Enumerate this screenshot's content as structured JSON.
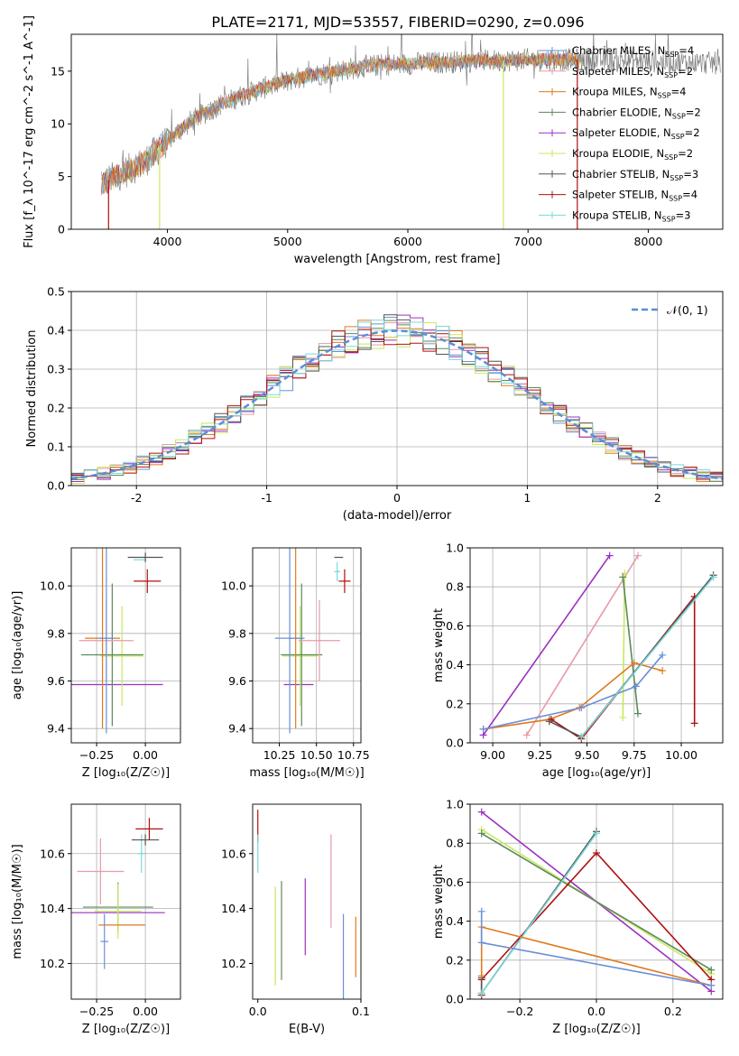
{
  "figure": {
    "title": "PLATE=2171, MJD=53557, FIBERID=0290, z=0.096"
  },
  "colors": {
    "chabrier_miles": "#6a8fd8",
    "salpeter_miles": "#e89aa8",
    "kroupa_miles": "#e07a1f",
    "chabrier_elodie": "#5a8a5a",
    "salpeter_elodie": "#9b30c0",
    "kroupa_elodie": "#c8e860",
    "chabrier_stelib": "#555555",
    "salpeter_stelib": "#b01010",
    "kroupa_stelib": "#7ad8d8",
    "gauss": "#5b8ed6",
    "grid": "#b0b0b0"
  },
  "chart_data": [
    {
      "id": "spectrum",
      "type": "line",
      "xlabel": "wavelength [Angstrom, rest frame]",
      "ylabel": "Flux [f_λ 10^-17 erg cm^-2 s^-1 A^-1]",
      "xlim": [
        3200,
        8620
      ],
      "ylim": [
        0,
        18.5
      ],
      "xticks": [
        4000,
        5000,
        6000,
        7000,
        8000
      ],
      "yticks": [
        0,
        5,
        10,
        15
      ],
      "grid": false,
      "legend_position": "upper-right",
      "legend": [
        {
          "label": "Chabrier MILES, N",
          "sub": "SSP",
          "suffix": "=4",
          "color_key": "chabrier_miles"
        },
        {
          "label": "Salpeter MILES, N",
          "sub": "SSP",
          "suffix": "=2",
          "color_key": "salpeter_miles"
        },
        {
          "label": "Kroupa MILES, N",
          "sub": "SSP",
          "suffix": "=4",
          "color_key": "kroupa_miles"
        },
        {
          "label": "Chabrier ELODIE, N",
          "sub": "SSP",
          "suffix": "=2",
          "color_key": "chabrier_elodie"
        },
        {
          "label": "Salpeter ELODIE, N",
          "sub": "SSP",
          "suffix": "=2",
          "color_key": "salpeter_elodie"
        },
        {
          "label": "Kroupa ELODIE, N",
          "sub": "SSP",
          "suffix": "=2",
          "color_key": "kroupa_elodie"
        },
        {
          "label": "Chabrier STELIB, N",
          "sub": "SSP",
          "suffix": "=3",
          "color_key": "chabrier_stelib"
        },
        {
          "label": "Salpeter STELIB, N",
          "sub": "SSP",
          "suffix": "=4",
          "color_key": "salpeter_stelib"
        },
        {
          "label": "Kroupa STELIB, N",
          "sub": "SSP",
          "suffix": "=3",
          "color_key": "kroupa_stelib"
        }
      ],
      "continuum": {
        "x": [
          3450,
          3600,
          3800,
          4000,
          4200,
          4400,
          4600,
          4800,
          5000,
          5200,
          5400,
          5600,
          5800,
          6000,
          6200,
          6400,
          6600,
          6800,
          7000,
          7200,
          7400,
          7450
        ],
        "y": [
          4.3,
          5.2,
          6.3,
          8.4,
          10.3,
          11.6,
          12.6,
          13.4,
          14.1,
          14.6,
          15.0,
          15.4,
          15.6,
          15.7,
          15.8,
          15.9,
          16.0,
          16.0,
          16.1,
          16.1,
          16.1,
          16.0
        ]
      },
      "data_range": [
        3450,
        8600
      ],
      "model_range": [
        3450,
        7450
      ],
      "spikes": [
        {
          "x": 3510,
          "y": 0,
          "color_key": "salpeter_stelib"
        },
        {
          "x": 3935,
          "y": 0,
          "color_key": "kroupa_elodie"
        },
        {
          "x": 6795,
          "y": 0,
          "color_key": "kroupa_elodie"
        },
        {
          "x": 7410,
          "y": 0,
          "color_key": "salpeter_stelib"
        },
        {
          "x": 5850,
          "y": 16.2,
          "color_key": "salpeter_miles"
        }
      ]
    },
    {
      "id": "residuals",
      "type": "step-histogram",
      "xlabel": "(data-model)/error",
      "ylabel": "Normed distribution",
      "xlim": [
        -2.5,
        2.5
      ],
      "ylim": [
        0,
        0.5
      ],
      "xticks": [
        -2,
        -1,
        0,
        1,
        2
      ],
      "yticks": [
        0.0,
        0.1,
        0.2,
        0.3,
        0.4,
        0.5
      ],
      "grid": true,
      "bin_width": 0.1,
      "legend": [
        {
          "label": "𝒩(0, 1)",
          "color_key": "gauss",
          "style": "dashed"
        }
      ],
      "legend_position": "upper-right"
    },
    {
      "id": "age_vs_Z",
      "type": "errorbar",
      "xlabel": "Z [log₁₀(Z/Z☉)]",
      "ylabel": "age  [log₁₀(age/yr)]",
      "xlim": [
        -0.38,
        0.18
      ],
      "ylim": [
        9.34,
        10.16
      ],
      "xticks": [
        -0.25,
        0.0
      ],
      "xticklabels": [
        "−0.25",
        "0.00"
      ],
      "yticks": [
        9.4,
        9.6,
        9.8,
        10.0
      ],
      "grid": true,
      "points": [
        {
          "x": -0.18,
          "xerr": 0.27,
          "y": 9.585,
          "yerr": 0.0,
          "color_key": "salpeter_elodie"
        },
        {
          "x": -0.12,
          "xerr": 0.11,
          "y": 9.705,
          "yerr": 0.21,
          "color_key": "kroupa_elodie"
        },
        {
          "x": -0.17,
          "xerr": 0.16,
          "y": 9.71,
          "yerr": 0.3,
          "color_key": "chabrier_elodie"
        },
        {
          "x": -0.2,
          "xerr": 0.14,
          "y": 9.77,
          "yerr": 0.17,
          "color_key": "salpeter_miles"
        },
        {
          "x": -0.22,
          "xerr": 0.09,
          "y": 9.78,
          "yerr": 0.38,
          "color_key": "kroupa_miles"
        },
        {
          "x": -0.2,
          "xerr": 0.04,
          "y": 9.78,
          "yerr": 0.4,
          "color_key": "chabrier_miles"
        },
        {
          "x": -0.03,
          "xerr": 0.03,
          "y": 10.11,
          "yerr": 0.0,
          "color_key": "kroupa_stelib"
        },
        {
          "x": 0.0,
          "xerr": 0.09,
          "y": 10.12,
          "yerr": 0.02,
          "color_key": "chabrier_stelib"
        },
        {
          "x": 0.01,
          "xerr": 0.07,
          "y": 10.02,
          "yerr": 0.05,
          "color_key": "salpeter_stelib"
        }
      ]
    },
    {
      "id": "age_vs_mass",
      "type": "errorbar",
      "xlabel": "mass [log₁₀(M/M☉)]",
      "ylabel": "",
      "xlim": [
        10.07,
        10.8
      ],
      "ylim": [
        9.34,
        10.16
      ],
      "xticks": [
        10.25,
        10.5,
        10.75
      ],
      "xticklabels": [
        "10.25",
        "10.50",
        "10.75"
      ],
      "yticks": [
        9.4,
        9.6,
        9.8,
        10.0
      ],
      "grid": true,
      "points": [
        {
          "x": 10.38,
          "xerr": 0.1,
          "y": 9.585,
          "yerr": 0.0,
          "color_key": "salpeter_elodie"
        },
        {
          "x": 10.39,
          "xerr": 0.12,
          "y": 9.705,
          "yerr": 0.21,
          "color_key": "kroupa_elodie"
        },
        {
          "x": 10.4,
          "xerr": 0.14,
          "y": 9.71,
          "yerr": 0.3,
          "color_key": "chabrier_elodie"
        },
        {
          "x": 10.52,
          "xerr": 0.14,
          "y": 9.77,
          "yerr": 0.17,
          "color_key": "salpeter_miles"
        },
        {
          "x": 10.36,
          "xerr": 0.05,
          "y": 9.78,
          "yerr": 0.38,
          "color_key": "kroupa_miles"
        },
        {
          "x": 10.32,
          "xerr": 0.1,
          "y": 9.78,
          "yerr": 0.4,
          "color_key": "chabrier_miles"
        },
        {
          "x": 10.64,
          "xerr": 0.02,
          "y": 10.06,
          "yerr": 0.04,
          "color_key": "kroupa_stelib"
        },
        {
          "x": 10.65,
          "xerr": 0.03,
          "y": 10.12,
          "yerr": 0.0,
          "color_key": "chabrier_stelib"
        },
        {
          "x": 10.69,
          "xerr": 0.04,
          "y": 10.02,
          "yerr": 0.05,
          "color_key": "salpeter_stelib"
        }
      ]
    },
    {
      "id": "massweight_vs_age",
      "type": "line",
      "xlabel": "age  [log₁₀(age/yr)]",
      "ylabel": "mass weight",
      "xlim": [
        8.88,
        10.22
      ],
      "ylim": [
        0,
        1.0
      ],
      "xticks": [
        9.0,
        9.25,
        9.5,
        9.75,
        10.0
      ],
      "xticklabels": [
        "9.00",
        "9.25",
        "9.50",
        "9.75",
        "10.00"
      ],
      "yticks": [
        0.0,
        0.2,
        0.4,
        0.6,
        0.8,
        1.0
      ],
      "grid": true,
      "series": [
        {
          "color_key": "salpeter_elodie",
          "x": [
            8.95,
            9.62
          ],
          "y": [
            0.04,
            0.96
          ]
        },
        {
          "color_key": "salpeter_miles",
          "x": [
            9.18,
            9.77
          ],
          "y": [
            0.04,
            0.96
          ]
        },
        {
          "color_key": "kroupa_elodie",
          "x": [
            9.69,
            9.7
          ],
          "y": [
            0.13,
            0.87
          ]
        },
        {
          "color_key": "chabrier_elodie",
          "x": [
            9.69,
            9.77
          ],
          "y": [
            0.85,
            0.15
          ]
        },
        {
          "color_key": "kroupa_miles",
          "x": [
            8.95,
            9.3,
            9.46,
            9.75,
            9.9
          ],
          "y": [
            0.07,
            0.12,
            0.18,
            0.41,
            0.37
          ]
        },
        {
          "color_key": "chabrier_miles",
          "x": [
            8.95,
            9.47,
            9.76,
            9.9
          ],
          "y": [
            0.07,
            0.18,
            0.29,
            0.45
          ]
        },
        {
          "color_key": "salpeter_stelib",
          "x": [
            9.31,
            9.47,
            10.07,
            10.07
          ],
          "y": [
            0.12,
            0.02,
            0.75,
            0.1
          ]
        },
        {
          "color_key": "chabrier_stelib",
          "x": [
            9.3,
            9.47,
            10.17
          ],
          "y": [
            0.11,
            0.03,
            0.86
          ]
        },
        {
          "color_key": "kroupa_stelib",
          "x": [
            9.47,
            10.17
          ],
          "y": [
            0.03,
            0.85
          ]
        }
      ]
    },
    {
      "id": "mass_vs_Z",
      "type": "errorbar",
      "xlabel": "Z [log₁₀(Z/Z☉)]",
      "ylabel": "mass [log₁₀(M/M☉)]",
      "xlim": [
        -0.38,
        0.18
      ],
      "ylim": [
        10.07,
        10.78
      ],
      "xticks": [
        -0.25,
        0.0
      ],
      "xticklabels": [
        "−0.25",
        "0.00"
      ],
      "yticks": [
        10.2,
        10.4,
        10.6
      ],
      "grid": true,
      "points": [
        {
          "x": -0.16,
          "xerr": 0.26,
          "y": 10.385,
          "yerr": 0.0,
          "color_key": "salpeter_elodie"
        },
        {
          "x": -0.14,
          "xerr": 0.18,
          "y": 10.405,
          "yerr": 0.09,
          "color_key": "chabrier_elodie"
        },
        {
          "x": -0.14,
          "xerr": 0.12,
          "y": 10.39,
          "yerr": 0.1,
          "color_key": "kroupa_elodie"
        },
        {
          "x": -0.12,
          "xerr": 0.12,
          "y": 10.34,
          "yerr": 0.0,
          "color_key": "kroupa_miles"
        },
        {
          "x": -0.21,
          "xerr": 0.02,
          "y": 10.28,
          "yerr": 0.1,
          "color_key": "chabrier_miles"
        },
        {
          "x": -0.23,
          "xerr": 0.12,
          "y": 10.535,
          "yerr": 0.12,
          "color_key": "salpeter_miles"
        },
        {
          "x": -0.02,
          "xerr": 0.02,
          "y": 10.6,
          "yerr": 0.07,
          "color_key": "kroupa_stelib"
        },
        {
          "x": 0.0,
          "xerr": 0.07,
          "y": 10.65,
          "yerr": 0.02,
          "color_key": "chabrier_stelib"
        },
        {
          "x": 0.02,
          "xerr": 0.07,
          "y": 10.69,
          "yerr": 0.04,
          "color_key": "salpeter_stelib"
        }
      ]
    },
    {
      "id": "mass_vs_ebv",
      "type": "errorbar",
      "xlabel": "E(B-V)",
      "ylabel": "",
      "xlim": [
        -0.005,
        0.1
      ],
      "ylim": [
        10.07,
        10.78
      ],
      "xticks": [
        0.0,
        0.1
      ],
      "xticklabels": [
        "0.0",
        "0.1"
      ],
      "yticks": [
        10.2,
        10.4,
        10.6
      ],
      "grid": false,
      "points": [
        {
          "x": 0.0,
          "xerr": 0.0,
          "y": 10.7,
          "yerr": 0.06,
          "color_key": "salpeter_stelib"
        },
        {
          "x": 0.0,
          "xerr": 0.0,
          "y": 10.6,
          "yerr": 0.07,
          "color_key": "kroupa_stelib"
        },
        {
          "x": 0.017,
          "xerr": 0.0,
          "y": 10.3,
          "yerr": 0.18,
          "color_key": "kroupa_elodie"
        },
        {
          "x": 0.023,
          "xerr": 0.0,
          "y": 10.32,
          "yerr": 0.18,
          "color_key": "chabrier_elodie"
        },
        {
          "x": 0.046,
          "xerr": 0.0,
          "y": 10.37,
          "yerr": 0.14,
          "color_key": "salpeter_elodie"
        },
        {
          "x": 0.071,
          "xerr": 0.0,
          "y": 10.5,
          "yerr": 0.17,
          "color_key": "salpeter_miles"
        },
        {
          "x": 0.083,
          "xerr": 0.0,
          "y": 10.22,
          "yerr": 0.16,
          "color_key": "chabrier_miles"
        },
        {
          "x": 0.095,
          "xerr": 0.0,
          "y": 10.26,
          "yerr": 0.11,
          "color_key": "kroupa_miles"
        }
      ]
    },
    {
      "id": "massweight_vs_Z",
      "type": "line",
      "xlabel": "Z [log₁₀(Z/Z☉)]",
      "ylabel": "mass weight",
      "xlim": [
        -0.33,
        0.33
      ],
      "ylim": [
        0,
        1.0
      ],
      "xticks": [
        -0.2,
        0.0,
        0.2
      ],
      "xticklabels": [
        "−0.2",
        "0.0",
        "0.2"
      ],
      "yticks": [
        0.0,
        0.2,
        0.4,
        0.6,
        0.8,
        1.0
      ],
      "grid": true,
      "series": [
        {
          "color_key": "salpeter_elodie",
          "x": [
            -0.3,
            0.3
          ],
          "y": [
            0.96,
            0.04
          ]
        },
        {
          "color_key": "kroupa_elodie",
          "x": [
            -0.3,
            0.3
          ],
          "y": [
            0.87,
            0.13
          ]
        },
        {
          "color_key": "chabrier_elodie",
          "x": [
            -0.3,
            0.3
          ],
          "y": [
            0.85,
            0.15
          ]
        },
        {
          "color_key": "salpeter_stelib",
          "x": [
            -0.3,
            -0.3,
            0.0,
            0.3
          ],
          "y": [
            0.02,
            0.1,
            0.75,
            0.1
          ]
        },
        {
          "color_key": "chabrier_stelib",
          "x": [
            -0.3,
            -0.3,
            0.0
          ],
          "y": [
            0.11,
            0.03,
            0.86
          ]
        },
        {
          "color_key": "kroupa_stelib",
          "x": [
            -0.3,
            0.0
          ],
          "y": [
            0.03,
            0.85
          ]
        },
        {
          "color_key": "kroupa_miles",
          "x": [
            -0.3,
            -0.3,
            0.3
          ],
          "y": [
            0.12,
            0.37,
            0.07
          ]
        },
        {
          "color_key": "chabrier_miles",
          "x": [
            -0.3,
            -0.3,
            0.3
          ],
          "y": [
            0.45,
            0.29,
            0.07
          ]
        }
      ]
    }
  ]
}
